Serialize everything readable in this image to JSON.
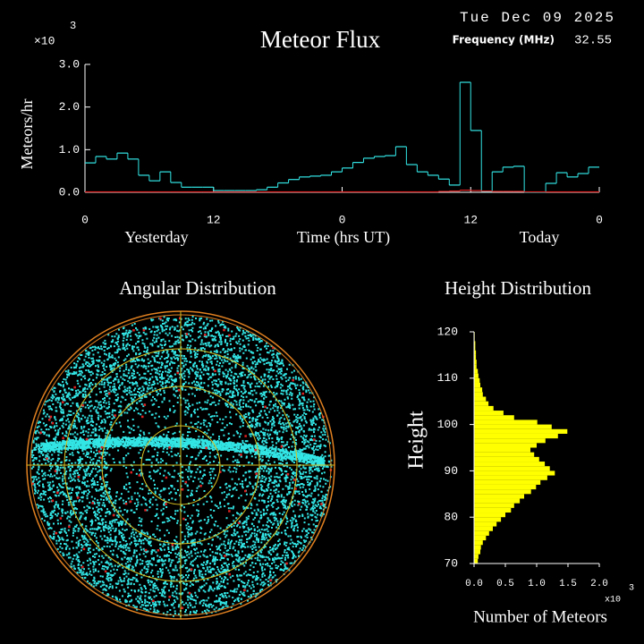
{
  "chart_data": [
    {
      "type": "step",
      "title": "Meteor Flux",
      "date": "Tue Dec 09 2025",
      "frequency_label": "Frequency (MHz)",
      "frequency": "32.55",
      "y_label": "Meteors/hr",
      "y_multiplier": "×10",
      "y_multiplier_exp": "3",
      "x_label": "Time (hrs UT)",
      "left_day": "Yesterday",
      "right_day": "Today",
      "x": [
        0,
        1,
        2,
        3,
        4,
        5,
        6,
        7,
        8,
        9,
        10,
        11,
        12,
        13,
        14,
        15,
        16,
        17,
        18,
        19,
        20,
        21,
        22,
        23,
        24,
        25,
        26,
        27,
        28,
        29,
        30,
        31,
        32,
        33,
        34,
        35,
        36,
        37,
        38,
        39,
        40,
        41,
        42,
        43,
        44,
        45,
        46,
        47
      ],
      "xlim": [
        0,
        48
      ],
      "xticks": [
        0,
        12,
        {
          "value": 24,
          "label": "0"
        },
        {
          "value": 36,
          "label": "12"
        },
        {
          "value": 48,
          "label": "0"
        }
      ],
      "ylim": [
        0,
        3
      ],
      "yticks": [
        {
          "value": 0,
          "label": "0.0"
        },
        {
          "value": 1,
          "label": "1.0"
        },
        {
          "value": 2,
          "label": "2.0"
        },
        {
          "value": 3,
          "label": "3.0"
        }
      ],
      "series": [
        {
          "color": "#33e6e6",
          "values": [
            0.69,
            0.84,
            0.78,
            0.92,
            0.78,
            0.4,
            0.27,
            0.48,
            0.23,
            0.12,
            0.12,
            0.12,
            0.04,
            0.04,
            0.04,
            0.04,
            0.06,
            0.12,
            0.22,
            0.3,
            0.36,
            0.38,
            0.4,
            0.48,
            0.57,
            0.7,
            0.8,
            0.84,
            0.86,
            1.07,
            0.65,
            0.48,
            0.4,
            0.31,
            0.17,
            2.58,
            1.45,
            0.02,
            0.48,
            0.59,
            0.61,
            0.0,
            0.0,
            0.21,
            0.46,
            0.36,
            0.44,
            0.59
          ]
        },
        {
          "color": "#e02020",
          "values": [
            0.01,
            0.01,
            0.01,
            0.01,
            0.01,
            0.01,
            0.01,
            0.01,
            0.01,
            0.01,
            0.01,
            0.01,
            0.01,
            0.01,
            0.01,
            0.01,
            0.01,
            0.01,
            0.01,
            0.01,
            0.01,
            0.01,
            0.01,
            0.01,
            0.01,
            0.01,
            0.01,
            0.01,
            0.01,
            0.01,
            0.01,
            0.01,
            0.01,
            0.02,
            0.03,
            0.05,
            0.04,
            0.03,
            0.02,
            0.02,
            0.02,
            0.01,
            0.01,
            0.01,
            0.01,
            0.01,
            0.01,
            0.01
          ]
        }
      ]
    },
    {
      "type": "polar",
      "title": "Angular Distribution"
    },
    {
      "type": "histogram",
      "title": "Height Distribution",
      "y_label": "Height",
      "x_label": "Number of Meteors",
      "x_multiplier": "x10",
      "x_multiplier_exp": "3",
      "color": "#ffff00",
      "bins": [
        70,
        71,
        72,
        73,
        74,
        75,
        76,
        77,
        78,
        79,
        80,
        81,
        82,
        83,
        84,
        85,
        86,
        87,
        88,
        89,
        90,
        91,
        92,
        93,
        94,
        95,
        96,
        97,
        98,
        99,
        100,
        101,
        102,
        103,
        104,
        105,
        106,
        107,
        108,
        109,
        110,
        111,
        112,
        113,
        114,
        115,
        116,
        117,
        118,
        119,
        120
      ],
      "values": [
        0.06,
        0.07,
        0.1,
        0.11,
        0.14,
        0.19,
        0.24,
        0.3,
        0.36,
        0.43,
        0.5,
        0.59,
        0.64,
        0.73,
        0.8,
        0.91,
        0.99,
        1.06,
        1.17,
        1.29,
        1.21,
        1.13,
        1.04,
        0.96,
        0.9,
        1.0,
        1.14,
        1.34,
        1.49,
        1.24,
        1.01,
        0.64,
        0.47,
        0.31,
        0.23,
        0.19,
        0.14,
        0.13,
        0.1,
        0.09,
        0.07,
        0.06,
        0.04,
        0.04,
        0.03,
        0.03,
        0.02,
        0.02,
        0.01,
        0.01
      ],
      "xlim": [
        0,
        2
      ],
      "xticks": [
        {
          "value": 0,
          "label": "0.0"
        },
        0.5,
        {
          "value": 1,
          "label": "1.0"
        },
        1.5,
        {
          "value": 2,
          "label": "2.0"
        }
      ],
      "ylim": [
        70,
        120
      ],
      "yticks": [
        70,
        80,
        90,
        100,
        110,
        120
      ]
    }
  ]
}
